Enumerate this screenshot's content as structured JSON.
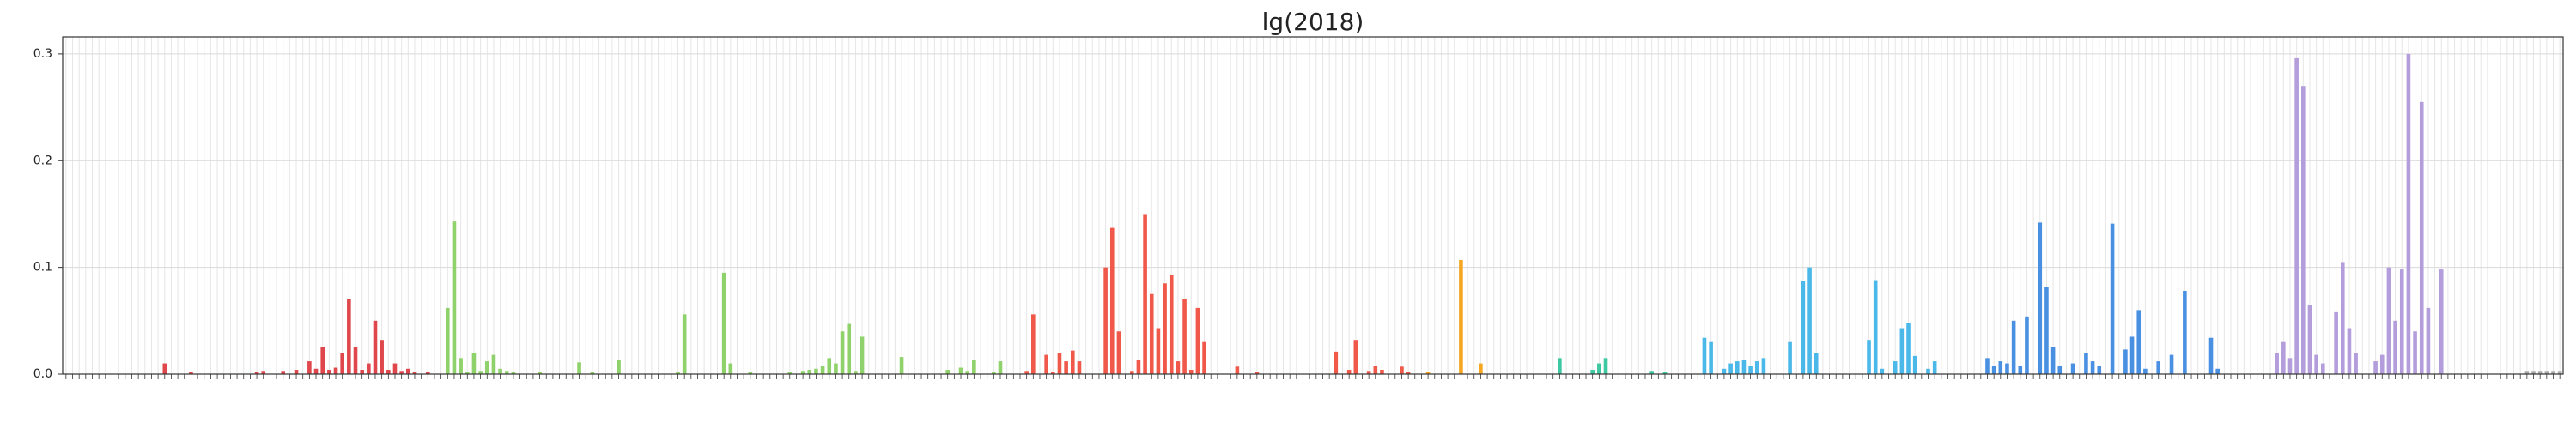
{
  "chart_data": {
    "type": "bar",
    "title": "lg(2018)",
    "ylim": [
      0,
      0.316
    ],
    "yticks": [
      {
        "value": 0,
        "label": "0.0"
      },
      0.1,
      0.2,
      0.3
    ],
    "grid": true,
    "series": [
      {
        "color": "#e0474c",
        "values": [
          0,
          0,
          0,
          0,
          0,
          0,
          0,
          0,
          0,
          0,
          0,
          0,
          0,
          0,
          0,
          0.01,
          0,
          0,
          0,
          0.002,
          0,
          0,
          0,
          0,
          0,
          0,
          0,
          0,
          0,
          0.002,
          0.003,
          0,
          0,
          0.003,
          0,
          0.004,
          0,
          0.012,
          0.005,
          0.025,
          0.004,
          0.006,
          0.02,
          0.07,
          0.025,
          0.004,
          0.01,
          0.05,
          0.032,
          0.004,
          0.01,
          0.003,
          0.005,
          0.002,
          0,
          0.002,
          0
        ]
      },
      {
        "color": "#8fd16a",
        "values": [
          0,
          0.062,
          0.143,
          0.015,
          0.002,
          0.02,
          0.003,
          0.012,
          0.018,
          0.005,
          0.003,
          0.002,
          0,
          0,
          0,
          0.002,
          0,
          0,
          0,
          0,
          0,
          0.011,
          0,
          0.002,
          0,
          0,
          0,
          0.013,
          0,
          0,
          0,
          0,
          0,
          0,
          0,
          0,
          0.002,
          0.056,
          0,
          0,
          0,
          0,
          0,
          0.095,
          0.01,
          0,
          0,
          0.002,
          0,
          0,
          0,
          0,
          0,
          0.002,
          0,
          0.003,
          0.004,
          0.005,
          0.008,
          0.015,
          0.01,
          0.04,
          0.047,
          0.003,
          0.035,
          0,
          0,
          0,
          0,
          0,
          0.016,
          0,
          0,
          0,
          0,
          0,
          0,
          0.004,
          0,
          0.006,
          0.003,
          0.013,
          0,
          0,
          0.002,
          0.012,
          0
        ]
      },
      {
        "color": "#f0584a",
        "values": [
          0,
          0,
          0.003,
          0.056,
          0,
          0.018,
          0.002,
          0.02,
          0.012,
          0.022,
          0.012,
          0,
          0,
          0,
          0.1,
          0.137,
          0.04,
          0,
          0.003,
          0.013,
          0.15,
          0.075,
          0.043,
          0.085,
          0.093,
          0.012,
          0.07,
          0.004,
          0.062,
          0.03,
          0,
          0,
          0,
          0,
          0.007,
          0,
          0,
          0.002,
          0,
          0,
          0,
          0,
          0,
          0,
          0,
          0,
          0,
          0,
          0,
          0.021,
          0,
          0.004,
          0.032,
          0,
          0.003,
          0.008,
          0.004,
          0,
          0,
          0.007,
          0.002,
          0
        ]
      },
      {
        "color": "#f5a623",
        "values": [
          0,
          0.002,
          0,
          0,
          0,
          0,
          0.107,
          0,
          0,
          0.01,
          0,
          0,
          0,
          0,
          0,
          0,
          0
        ]
      },
      {
        "color": "#3cc8a0",
        "values": [
          0,
          0,
          0,
          0,
          0.015,
          0,
          0,
          0,
          0,
          0.004,
          0.01,
          0.015,
          0,
          0,
          0,
          0,
          0,
          0,
          0.003,
          0,
          0.002,
          0,
          0
        ]
      },
      {
        "color": "#4ab8e8",
        "values": [
          0,
          0,
          0,
          0.034,
          0.03,
          0,
          0.005,
          0.01,
          0.012,
          0.013,
          0.008,
          0.012,
          0.015,
          0,
          0,
          0,
          0.03,
          0,
          0.087,
          0.1,
          0.02,
          0,
          0,
          0,
          0,
          0,
          0,
          0,
          0.032,
          0.088,
          0.005,
          0,
          0.012,
          0.043,
          0.048,
          0.017,
          0,
          0.005,
          0.012,
          0,
          0
        ]
      },
      {
        "color": "#4a90e2",
        "values": [
          0,
          0,
          0,
          0,
          0,
          0.015,
          0.008,
          0.012,
          0.01,
          0.05,
          0.008,
          0.054,
          0,
          0.142,
          0.082,
          0.025,
          0.008,
          0,
          0.01,
          0,
          0.02,
          0.012,
          0.008,
          0,
          0.141,
          0,
          0.023,
          0.035,
          0.06,
          0.005,
          0,
          0.012,
          0,
          0.018,
          0,
          0.078,
          0,
          0,
          0,
          0.034,
          0.005,
          0,
          0,
          0
        ]
      },
      {
        "color": "#b39ddb",
        "values": [
          0,
          0,
          0,
          0,
          0,
          0.02,
          0.03,
          0.015,
          0.296,
          0.27,
          0.065,
          0.018,
          0.01,
          0,
          0.058,
          0.105,
          0.043,
          0.02,
          0,
          0,
          0.012,
          0.018,
          0.1,
          0.05,
          0.098,
          0.3,
          0.04,
          0.255,
          0.062,
          0,
          0.098,
          0,
          0,
          0,
          0
        ]
      },
      {
        "color": "#aaaaaa",
        "values": [
          0,
          0,
          0,
          0,
          0,
          0,
          0,
          0,
          0.003,
          0.003,
          0.003,
          0.003,
          0.003,
          0.003
        ]
      }
    ]
  }
}
